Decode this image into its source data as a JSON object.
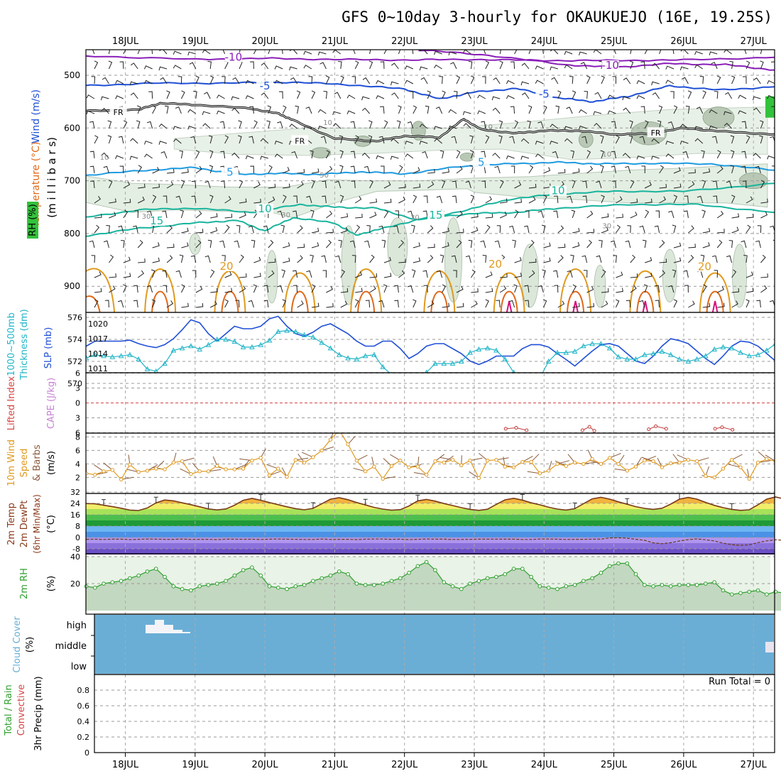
{
  "title": "GFS 0~10day 3-hourly for OKAUKUEJO (16E, 19.25S)",
  "colors": {
    "purple": "#8a1fb8",
    "blue": "#1f4fd6",
    "lightblue": "#1f9be0",
    "teal": "#19b49e",
    "orange": "#e09a20",
    "darkorange": "#e0691a",
    "magenta": "#d8107a",
    "cyan": "#21b5c8",
    "cloud": "#6aaed6",
    "green": "#2fa02f",
    "brown": "#8a5a3c"
  },
  "chart_data": [
    {
      "id": "upper_air",
      "type": "contour",
      "ylabel": [
        "Temperature (°C)",
        "Wind (m/s)",
        "RH (%)",
        "(m i l l i b a r s)"
      ],
      "x_tick_labels": [
        "18JUL",
        "19JUL",
        "20JUL",
        "21JUL",
        "22JUL",
        "23JUL",
        "24JUL",
        "25JUL",
        "26JUL",
        "27JUL"
      ],
      "ylim": [
        450,
        950
      ],
      "y_ticks": [
        500,
        600,
        700,
        800,
        900
      ],
      "contour_labels": [
        {
          "text": "-10",
          "day": 1.55,
          "p": 470
        },
        {
          "text": "-10",
          "day": 6.95,
          "p": 485
        },
        {
          "text": "-5",
          "day": 2.0,
          "p": 524
        },
        {
          "text": "-5",
          "day": 6.0,
          "p": 540
        },
        {
          "text": "FR",
          "day": -0.1,
          "p": 573
        },
        {
          "text": "FR",
          "day": 2.5,
          "p": 627
        },
        {
          "text": "FR",
          "day": 7.6,
          "p": 612
        },
        {
          "text": "5",
          "day": 1.5,
          "p": 688
        },
        {
          "text": "5",
          "day": 5.1,
          "p": 669
        },
        {
          "text": "10",
          "day": 2.0,
          "p": 757
        },
        {
          "text": "10",
          "day": 6.2,
          "p": 723
        },
        {
          "text": "15",
          "day": 0.45,
          "p": 780
        },
        {
          "text": "15",
          "day": 4.45,
          "p": 769
        },
        {
          "text": "20",
          "day": 1.45,
          "p": 866
        },
        {
          "text": "20",
          "day": 5.3,
          "p": 862
        },
        {
          "text": "20",
          "day": 8.3,
          "p": 867
        }
      ],
      "rh_labels": [
        {
          "text": "10",
          "day": 2.9,
          "p": 590
        },
        {
          "text": "10",
          "day": -0.3,
          "p": 656
        },
        {
          "text": "10",
          "day": 5.2,
          "p": 598
        },
        {
          "text": "10",
          "day": 6.9,
          "p": 650
        },
        {
          "text": "30",
          "day": 0.3,
          "p": 768
        },
        {
          "text": "30",
          "day": 2.3,
          "p": 765
        },
        {
          "text": "30",
          "day": 4.15,
          "p": 770
        },
        {
          "text": "30",
          "day": 6.9,
          "p": 786
        },
        {
          "text": "50",
          "day": 2.85,
          "p": 690
        }
      ]
    },
    {
      "id": "slp_thickness",
      "type": "line",
      "ylabel": [
        "1000~500mb",
        "Thickness (dm)",
        "SLP (mb)"
      ],
      "y_left_ticks": [
        570,
        572,
        574,
        576
      ],
      "y_right_ticks": [
        1011,
        1014,
        1017,
        1020
      ],
      "series": [
        {
          "name": "SLP (mb)",
          "values": [
            1015.5,
            1016.5,
            1016.5,
            1016.5,
            1016.5,
            1016.7,
            1016.0,
            1015.5,
            1015.2,
            1015.8,
            1017.0,
            1018.8,
            1020.8,
            1020.2,
            1018.0,
            1016.5,
            1018.0,
            1019.5,
            1019.0,
            1019.0,
            1019.5,
            1021.0,
            1021.5,
            1019.5,
            1018.0,
            1017.5,
            1018.3,
            1019.5,
            1020.0,
            1019.0,
            1018.0,
            1016.5,
            1015.5,
            1015.5,
            1016.5,
            1016.5,
            1015.0,
            1013.0,
            1014.0,
            1015.5,
            1016.0,
            1016.0,
            1015.0,
            1014.0,
            1012.5,
            1011.8,
            1012.5,
            1013.5,
            1013.5,
            1013.5,
            1015.0,
            1015.8,
            1015.8,
            1015.3,
            1014.0,
            1012.8,
            1011.5,
            1013.0,
            1014.5,
            1015.8,
            1016.0,
            1015.5,
            1014.0,
            1012.5,
            1012.0,
            1013.5,
            1015.5,
            1017.0,
            1016.6,
            1016.0,
            1014.5,
            1013.0,
            1011.8,
            1013.5,
            1015.5,
            1016.5,
            1016.3,
            1015.5,
            1014.0,
            1012.5,
            1012.0,
            1013.5,
            1015.5,
            1017.0,
            1016.4,
            1016.0,
            1015.0,
            1013.5,
            1012.5,
            1013.5,
            1015.0,
            1016.5,
            1016.5,
            1015.5,
            1014.5,
            1015.5,
            1017.0,
            1018.0
          ]
        },
        {
          "name": "1000~500mb Thickness (dm)",
          "values": [
            572.3,
            572.6,
            572.5,
            572.4,
            572.5,
            572.6,
            572.2,
            571.3,
            571.1,
            571.8,
            573.0,
            573.2,
            573.4,
            573.1,
            573.5,
            574.0,
            574.0,
            573.8,
            573.3,
            573.3,
            573.5,
            573.9,
            574.7,
            574.8,
            574.7,
            574.4,
            574.2,
            573.7,
            573.2,
            572.6,
            572.3,
            572.2,
            572.5,
            572.6,
            571.5,
            570.8,
            570.0,
            569.5,
            570.0,
            571.0,
            571.8,
            571.8,
            571.8,
            572.0,
            572.8,
            573.1,
            573.2,
            573.0,
            572.2,
            571.0,
            570.0,
            569.5,
            570.5,
            572.0,
            572.8,
            572.8,
            572.9,
            573.4,
            573.6,
            573.6,
            573.2,
            572.4,
            572.2,
            572.2,
            572.6,
            572.7,
            572.9,
            572.6,
            572.2,
            572.0,
            572.2,
            572.5,
            573.1,
            573.3,
            573.2,
            572.8,
            572.5,
            572.6,
            573.0,
            573.6,
            574.0,
            573.7,
            573.0,
            572.4,
            572.3,
            572.5,
            572.2,
            572.0,
            572.7,
            573.5,
            573.4,
            573.0,
            573.0,
            573.4,
            574.0,
            574.5,
            573.8,
            571.0
          ]
        }
      ]
    },
    {
      "id": "cape_li",
      "type": "line",
      "ylabel": [
        "Lifted Index",
        "CAPE (J/kg)"
      ],
      "y_ticks": [
        -6,
        -3,
        0,
        3,
        6
      ],
      "y_tick_labels": [
        "6",
        "3",
        "0",
        "3",
        "6"
      ],
      "cape_series": [
        {
          "name": "CAPE",
          "segments": [
            [
              [
                5.45,
                5.2
              ],
              [
                5.6,
                5.0
              ],
              [
                5.75,
                5.5
              ]
            ],
            [
              [
                6.55,
                5.5
              ],
              [
                6.65,
                4.8
              ],
              [
                6.72,
                5.6
              ]
            ],
            [
              [
                7.5,
                5.3
              ],
              [
                7.6,
                4.7
              ],
              [
                7.75,
                5.2
              ]
            ],
            [
              [
                8.45,
                5.2
              ],
              [
                8.55,
                4.9
              ],
              [
                8.7,
                5.4
              ]
            ]
          ]
        }
      ]
    },
    {
      "id": "wind10m",
      "type": "line",
      "ylabel": [
        "10m Wind",
        "Speed",
        "& Barbs",
        "(m/s)"
      ],
      "ylim": [
        0.5,
        9
      ],
      "y_ticks": [
        2,
        4,
        6,
        8
      ],
      "series": [
        {
          "name": "10m Wind Speed",
          "values": [
            2.6,
            2.4,
            2.9,
            3.1,
            1.7,
            3.9,
            2.8,
            3.0,
            3.3,
            3.2,
            4.2,
            4.4,
            2.5,
            2.9,
            2.9,
            3.7,
            3.2,
            3.2,
            3.3,
            4.5,
            4.9,
            2.3,
            3.3,
            2.1,
            4.6,
            4.2,
            5.0,
            6.0,
            7.6,
            9.0,
            6.9,
            4.5,
            2.9,
            3.6,
            1.8,
            3.7,
            4.5,
            3.5,
            3.6,
            2.4,
            4.4,
            4.2,
            4.6,
            3.8,
            4.5,
            1.9,
            4.5,
            4.6,
            3.6,
            3.5,
            4.3,
            4.3,
            2.6,
            3.0,
            4.0,
            3.7,
            4.2,
            4.0,
            4.7,
            4.0,
            4.9,
            4.0,
            3.0,
            3.6,
            4.5,
            4.4,
            3.5,
            4.1,
            4.2,
            4.6,
            4.4,
            2.2,
            2.0,
            3.3,
            4.6,
            3.5,
            1.8,
            4.2,
            4.7,
            4.4,
            4.2,
            3.3,
            3.3,
            4.1,
            4.4,
            4.3,
            4.0,
            4.0,
            3.9,
            3.9,
            4.3,
            3.7,
            3.9,
            3.5,
            4.3,
            3.0,
            4.3,
            4.9
          ]
        }
      ]
    },
    {
      "id": "temp2m",
      "type": "area",
      "ylabel": [
        "2m Temp",
        "2m DewPt",
        "(6hr Min/Max)",
        "(°C)"
      ],
      "ylim": [
        -12,
        32
      ],
      "y_ticks": [
        -8,
        0,
        8,
        16,
        24,
        32
      ],
      "y_tick_labels": [
        "-8",
        "0",
        "8",
        "16",
        "24",
        "32"
      ],
      "series": [
        {
          "name": "2m Temp",
          "values": [
            23.9,
            23.7,
            22.7,
            21.7,
            20.6,
            19.3,
            19.0,
            20.8,
            24.4,
            26.4,
            25.8,
            24.4,
            23.1,
            21.6,
            20.1,
            19.4,
            20.1,
            22.7,
            26.2,
            27.5,
            26.2,
            24.6,
            23.1,
            21.6,
            20.3,
            19.5,
            20.5,
            23.7,
            27.0,
            28.0,
            26.6,
            24.6,
            22.9,
            21.2,
            20.0,
            19.2,
            19.6,
            22.2,
            25.8,
            26.8,
            25.6,
            23.9,
            22.5,
            21.0,
            19.8,
            19.1,
            19.9,
            23.3,
            26.5,
            27.6,
            26.3,
            24.4,
            23.0,
            21.3,
            20.0,
            19.3,
            20.3,
            23.8,
            27.2,
            28.3,
            27.0,
            25.1,
            23.4,
            21.7,
            20.5,
            19.8,
            20.6,
            23.5,
            27.0,
            28.2,
            27.0,
            24.7,
            22.6,
            21.0,
            19.8,
            19.1,
            19.5,
            23.0,
            27.0,
            28.5,
            27.2,
            25.0,
            23.3,
            21.7,
            20.3,
            19.6,
            20.5,
            23.9,
            27.5,
            29.2,
            28.5,
            26.2,
            24.2,
            22.5,
            21.1,
            20.3,
            19.8,
            19.5
          ]
        },
        {
          "name": "2m DewPt",
          "values": [
            -1.3,
            -1.2,
            -1.4,
            -1.2,
            -1.2,
            -1.5,
            -1.3,
            -1.1,
            -1.2,
            -1.3,
            -1.3,
            -1.1,
            -1.4,
            -1.3,
            -1.3,
            -1.5,
            -1.2,
            -1.2,
            -1.3,
            -1.2,
            -1.4,
            -1.2,
            -1.1,
            -1.2,
            -1.3,
            -1.4,
            -1.4,
            -1.1,
            -1.4,
            -1.3,
            -1.3,
            -1.5,
            -1.2,
            -1.1,
            -1.1,
            -1.3,
            -1.2,
            -1.5,
            -1.3,
            -1.1,
            -1.2,
            -1.2,
            -1.4,
            -1.4,
            -1.3,
            -1.2,
            -1.2,
            -1.2,
            -1.2,
            -1.2,
            -1.4,
            -1.4,
            -1.1,
            -1.1,
            -1.2,
            -1.4,
            -1.3,
            -1.3,
            -1.2,
            -1.2,
            -0.3,
            -0.2,
            -0.5,
            -1.3,
            -2.0,
            -3.8,
            -4.4,
            -3.7,
            -2.5,
            -1.5,
            -1.0,
            -1.6,
            -2.5,
            -4.0,
            -5.1,
            -5.5,
            -5.2,
            -3.6,
            -2.4,
            -1.6,
            -2.0,
            -3.4,
            -4.5,
            -5.6,
            -5.4,
            -4.4,
            -2.7,
            -1.9,
            -1.9,
            -2.6,
            -3.1,
            -3.3,
            -3.2,
            -2.8,
            -1.9,
            -1.3,
            -1.0,
            -1.0
          ]
        }
      ]
    },
    {
      "id": "rh2m",
      "type": "area",
      "ylabel": [
        "2m RH",
        "(%)"
      ],
      "ylim": [
        0,
        40
      ],
      "y_ticks": [
        20,
        40
      ],
      "series": [
        {
          "name": "2m RH",
          "values": [
            18,
            17,
            20,
            21,
            22,
            24,
            26,
            29,
            31,
            25,
            18,
            16,
            15,
            18,
            19,
            20,
            22,
            26,
            30,
            32,
            26,
            18,
            17,
            16,
            18,
            19,
            22,
            24,
            26,
            29,
            27,
            20,
            19,
            19,
            20,
            22,
            24,
            28,
            33,
            36,
            30,
            21,
            18,
            16,
            20,
            22,
            24,
            25,
            27,
            31,
            31,
            25,
            18,
            17,
            16,
            18,
            19,
            22,
            24,
            28,
            33,
            35,
            35,
            27,
            19,
            18,
            19,
            18,
            19,
            19,
            19,
            20,
            21,
            15,
            12,
            13,
            14,
            15,
            12,
            14,
            13,
            14,
            13,
            14,
            15,
            15,
            16,
            15,
            15,
            13,
            14,
            13,
            15,
            13,
            15,
            18,
            22,
            24
          ]
        }
      ]
    },
    {
      "id": "cloud_cover",
      "type": "area",
      "ylabel": [
        "Cloud Cover",
        "(%)"
      ],
      "y_tick_labels": [
        "high",
        "middle",
        "low"
      ]
    },
    {
      "id": "precip",
      "type": "bar",
      "ylabel": [
        "Total / Rain",
        "Convective",
        "3hr Precip (mm)"
      ],
      "annotation": "Run Total = 0",
      "ylim": [
        0,
        1
      ],
      "y_ticks": [
        0,
        0.2,
        0.4,
        0.6,
        0.8
      ],
      "y_tick_labels": [
        "0",
        "0.2",
        "0.4",
        "0.6",
        "0.8"
      ],
      "values": []
    }
  ]
}
